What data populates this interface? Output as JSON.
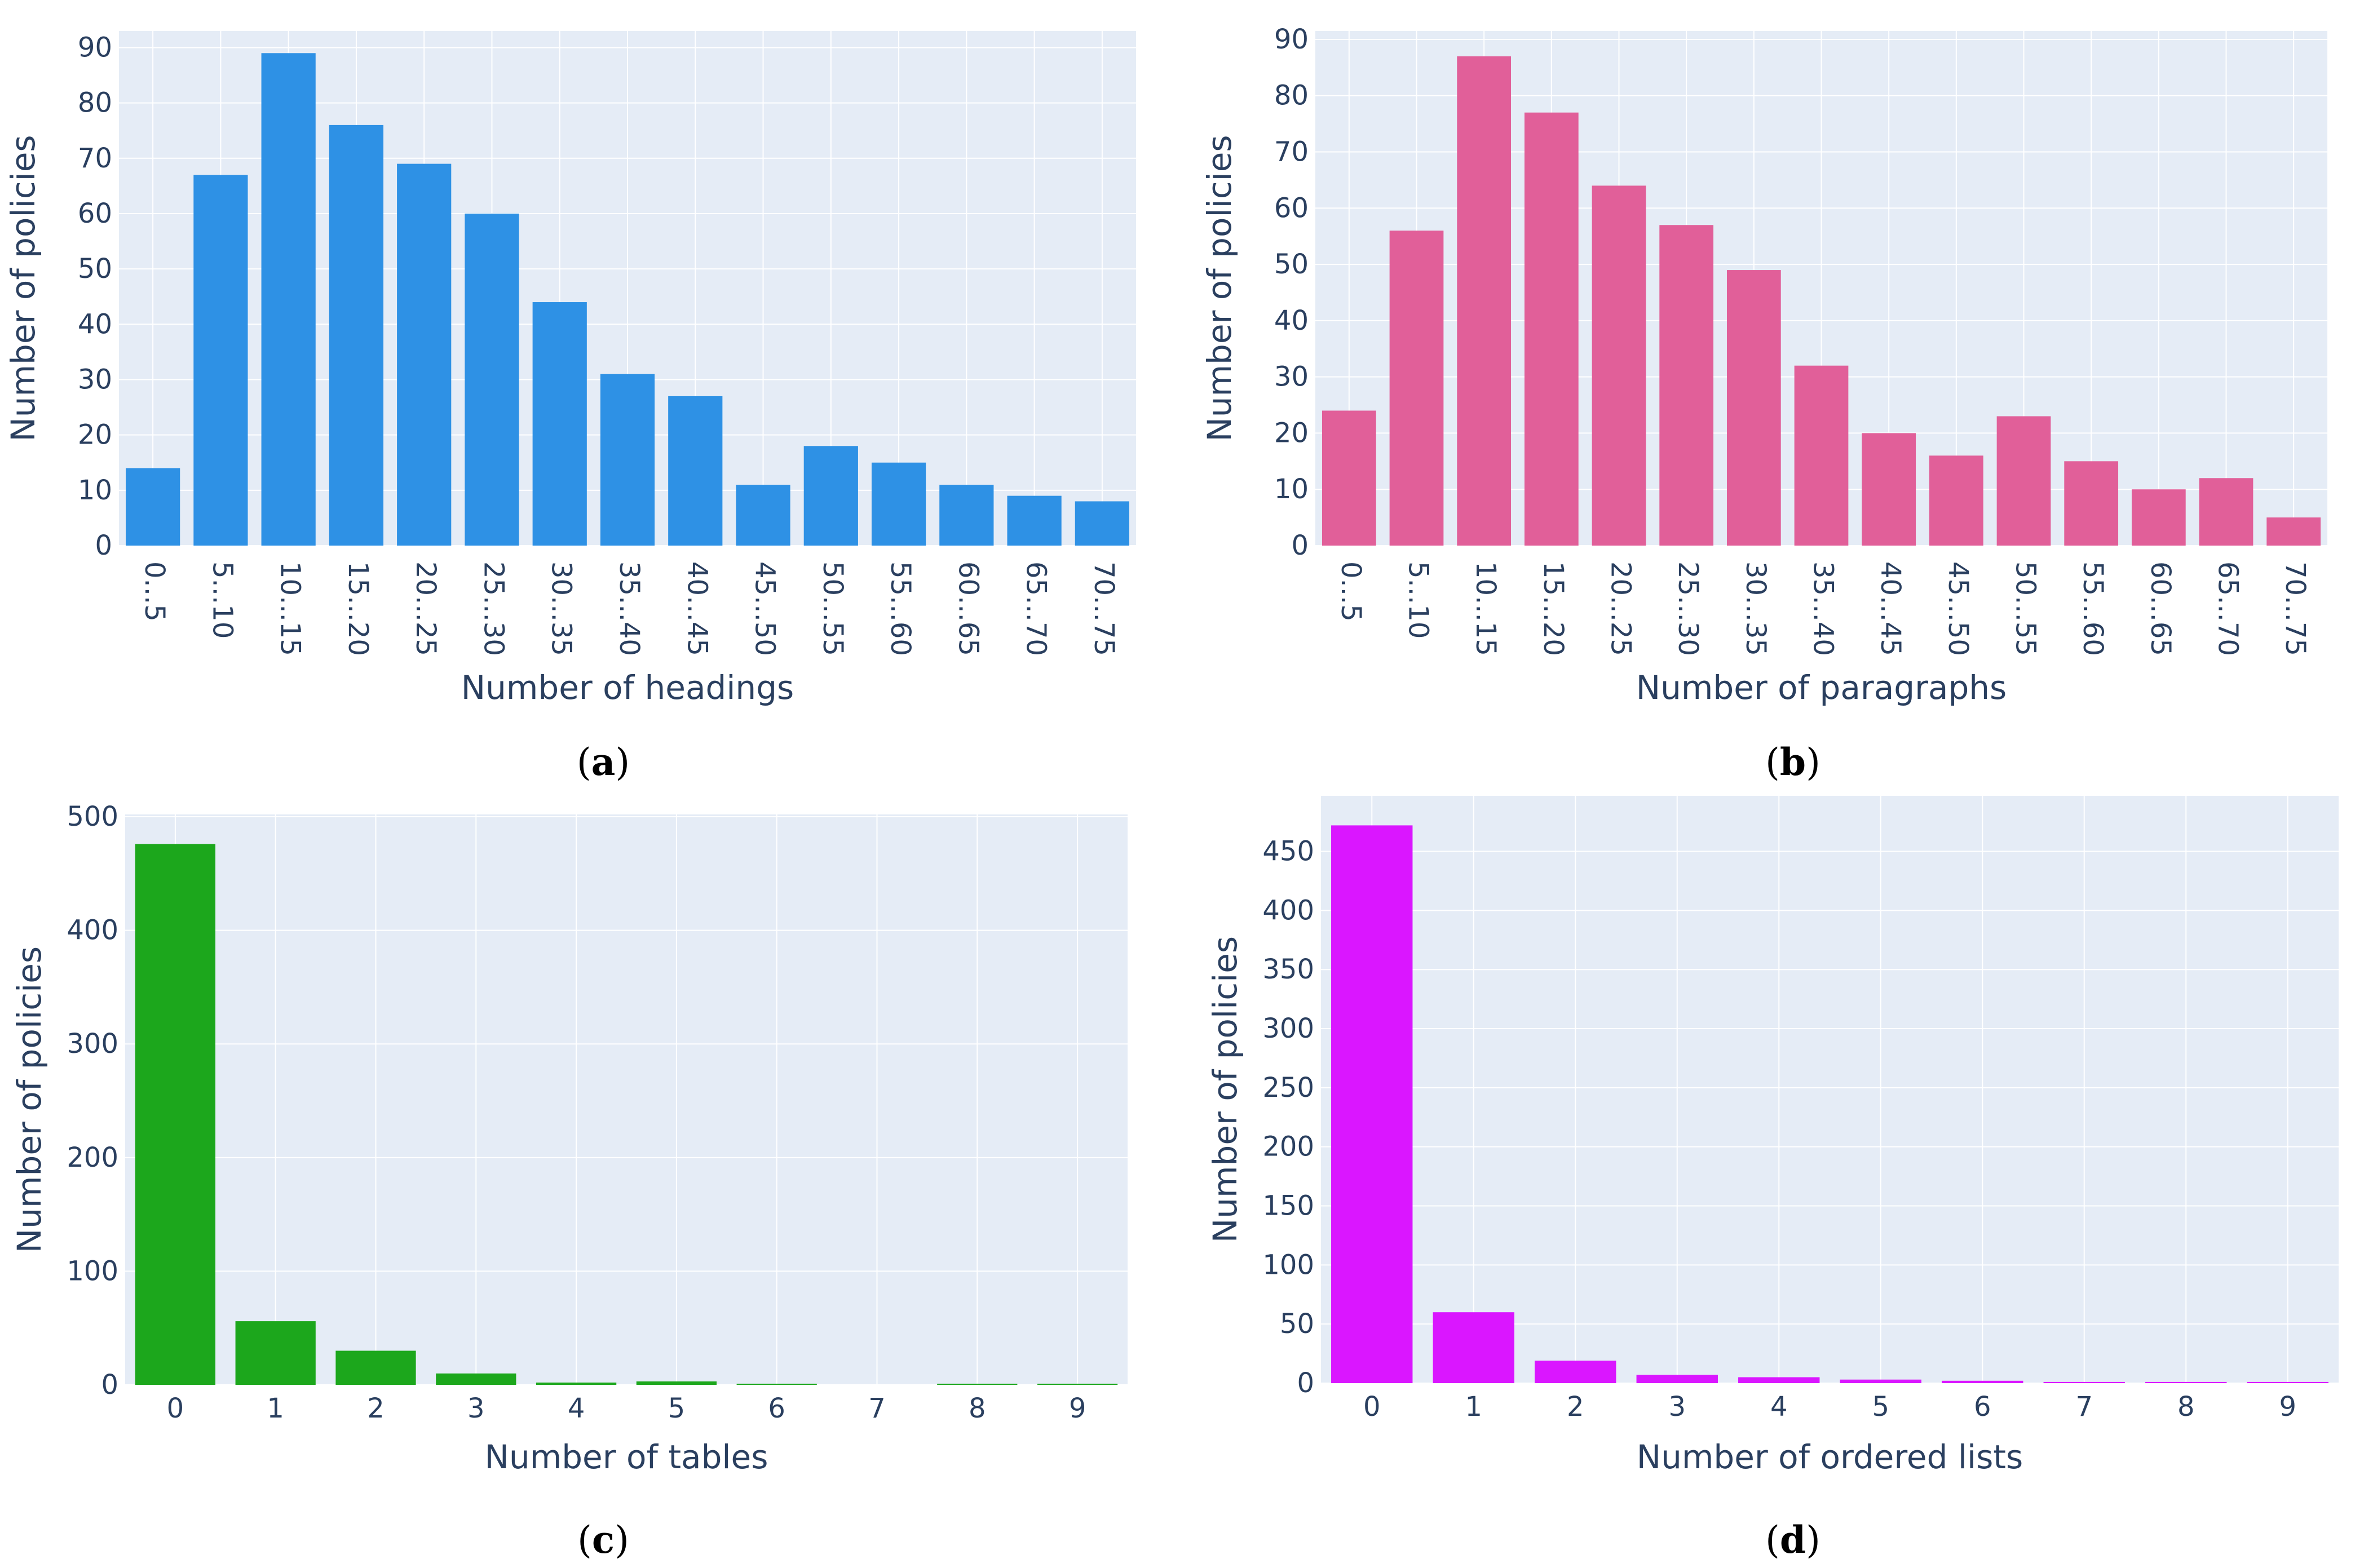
{
  "figure": {
    "panels": [
      "a",
      "b",
      "c",
      "d"
    ]
  },
  "colors": {
    "plot_bg": "#e5ecf6",
    "grid": "#ffffff",
    "headings": "#2e91e5",
    "paragraphs": "#e15f99",
    "tables": "#1ca71c",
    "ordered_lists": "#da16ff"
  },
  "chart_data": [
    {
      "id": "a",
      "type": "bar",
      "panel_label": "a",
      "categories": [
        "0...5",
        "5...10",
        "10...15",
        "15...20",
        "20...25",
        "25...30",
        "30...35",
        "35...40",
        "40...45",
        "45...50",
        "50...55",
        "55...60",
        "60...65",
        "65...70",
        "70...75"
      ],
      "values": [
        14,
        67,
        89,
        76,
        69,
        60,
        44,
        31,
        27,
        11,
        18,
        15,
        11,
        9,
        8
      ],
      "xlabel": "Number of headings",
      "ylabel": "Number of policies",
      "ylim": [
        0,
        93
      ],
      "yticks": [
        0,
        10,
        20,
        30,
        40,
        50,
        60,
        70,
        80,
        90
      ],
      "rotated_x": true,
      "color": "#2e91e5"
    },
    {
      "id": "b",
      "type": "bar",
      "panel_label": "b",
      "categories": [
        "0...5",
        "5...10",
        "10...15",
        "15...20",
        "20...25",
        "25...30",
        "30...35",
        "35...40",
        "40...45",
        "45...50",
        "50...55",
        "55...60",
        "60...65",
        "65...70",
        "70...75"
      ],
      "values": [
        24,
        56,
        87,
        77,
        64,
        57,
        49,
        32,
        20,
        16,
        23,
        15,
        10,
        12,
        5
      ],
      "xlabel": "Number of paragraphs",
      "ylabel": "Number of policies",
      "ylim": [
        0,
        91.5
      ],
      "yticks": [
        0,
        10,
        20,
        30,
        40,
        50,
        60,
        70,
        80,
        90
      ],
      "rotated_x": true,
      "color": "#e15f99"
    },
    {
      "id": "c",
      "type": "bar",
      "panel_label": "c",
      "categories": [
        "0",
        "1",
        "2",
        "3",
        "4",
        "5",
        "6",
        "7",
        "8",
        "9"
      ],
      "values": [
        476,
        56,
        30,
        10,
        2,
        3,
        1,
        0,
        1,
        1
      ],
      "xlabel": "Number of tables",
      "ylabel": "Number of policies",
      "ylim": [
        0,
        502
      ],
      "yticks": [
        0,
        100,
        200,
        300,
        400,
        500
      ],
      "rotated_x": false,
      "color": "#1ca71c"
    },
    {
      "id": "d",
      "type": "bar",
      "panel_label": "d",
      "categories": [
        "0",
        "1",
        "2",
        "3",
        "4",
        "5",
        "6",
        "7",
        "8",
        "9"
      ],
      "values": [
        472,
        60,
        19,
        7,
        5,
        3,
        2,
        1,
        1,
        1
      ],
      "xlabel": "Number of ordered lists",
      "ylabel": "Number of policies",
      "ylim": [
        0,
        497
      ],
      "yticks": [
        0,
        50,
        100,
        150,
        200,
        250,
        300,
        350,
        400,
        450
      ],
      "rotated_x": false,
      "color": "#da16ff"
    }
  ]
}
